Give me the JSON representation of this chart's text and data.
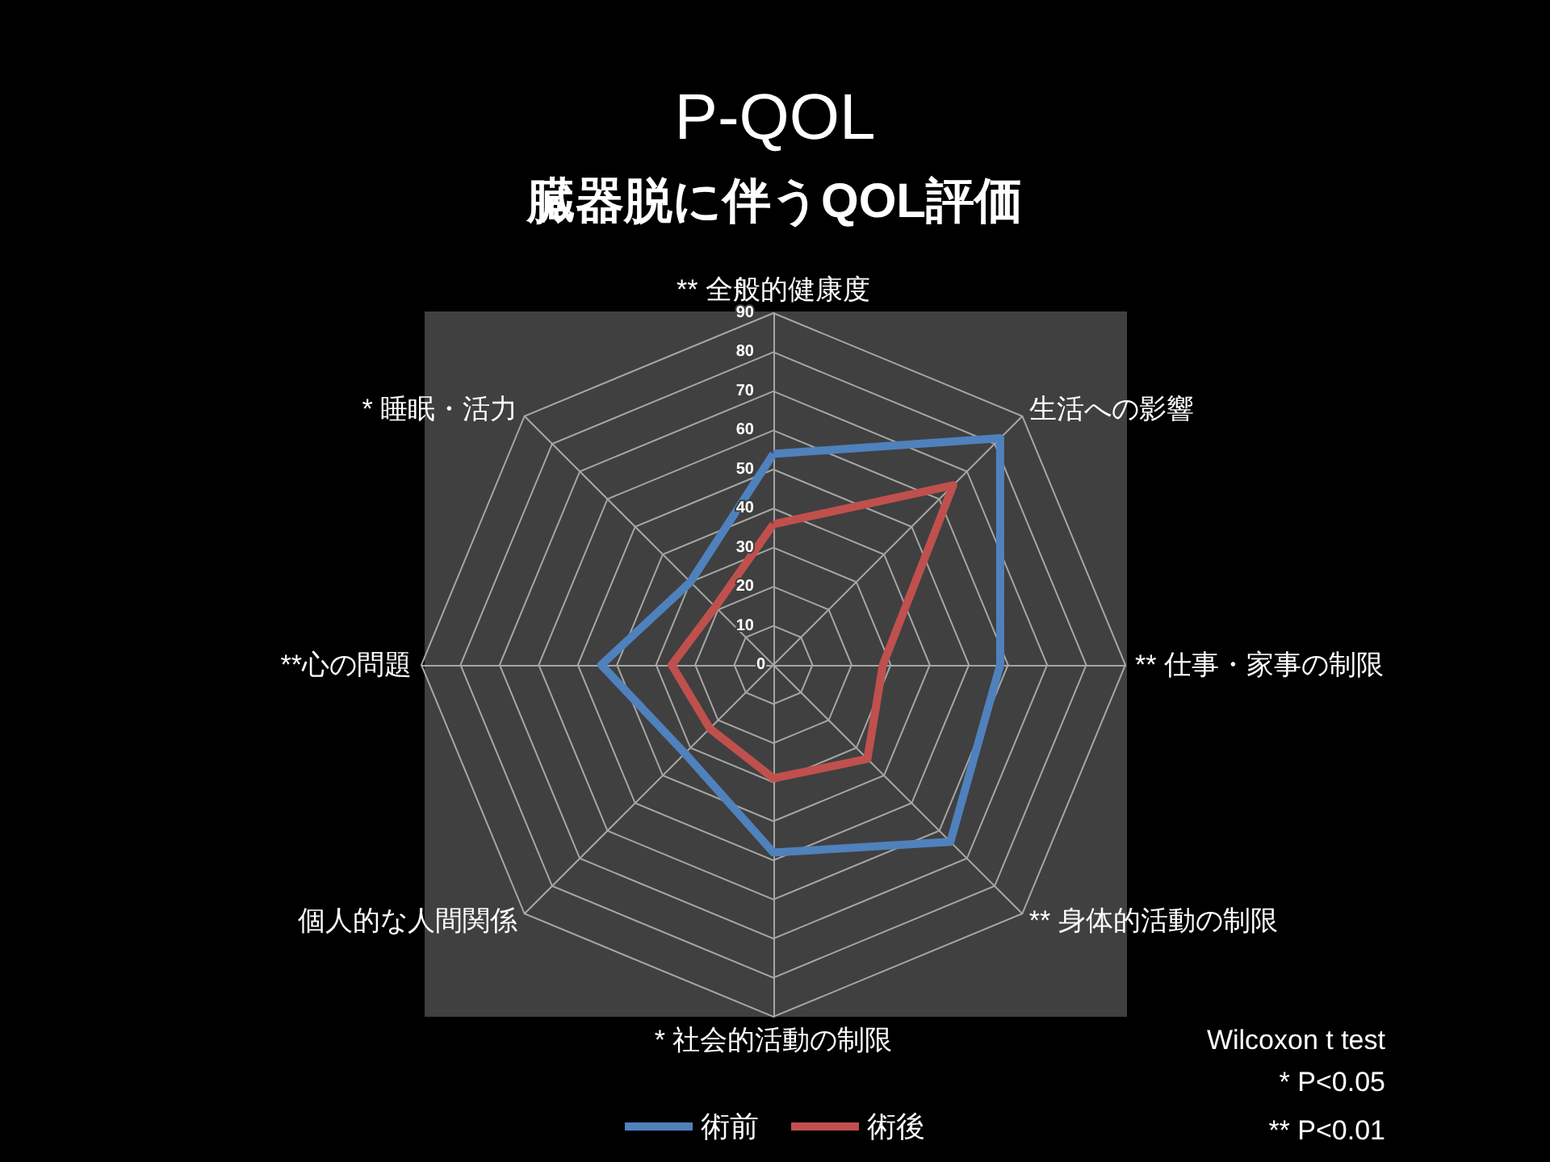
{
  "chart_data": {
    "type": "radar",
    "title": "P-QOL",
    "subtitle": "臓器脱に伴うQOL評価",
    "categories": [
      "** 全般的健康度",
      "生活への影響",
      "** 仕事・家事の制限",
      "** 身体的活動の制限",
      "* 社会的活動の制限",
      "個人的な人間関係",
      "**心の問題",
      "* 睡眠・活力"
    ],
    "series": [
      {
        "name": "術前",
        "color": "#4f81bd",
        "values": [
          54,
          82,
          58,
          64,
          48,
          32,
          44,
          30
        ]
      },
      {
        "name": "術後",
        "color": "#c0504d",
        "values": [
          36,
          65,
          28,
          34,
          29,
          23,
          26,
          21
        ]
      }
    ],
    "ylim": [
      0,
      90
    ],
    "yticks": [
      0,
      10,
      20,
      30,
      40,
      50,
      60,
      70,
      80,
      90
    ],
    "grid": true,
    "legend": "bottom",
    "marker": "none",
    "line_style": "solid",
    "annotations": [
      "Wilcoxon t test",
      "* P<0.05",
      "** P<0.01"
    ]
  }
}
